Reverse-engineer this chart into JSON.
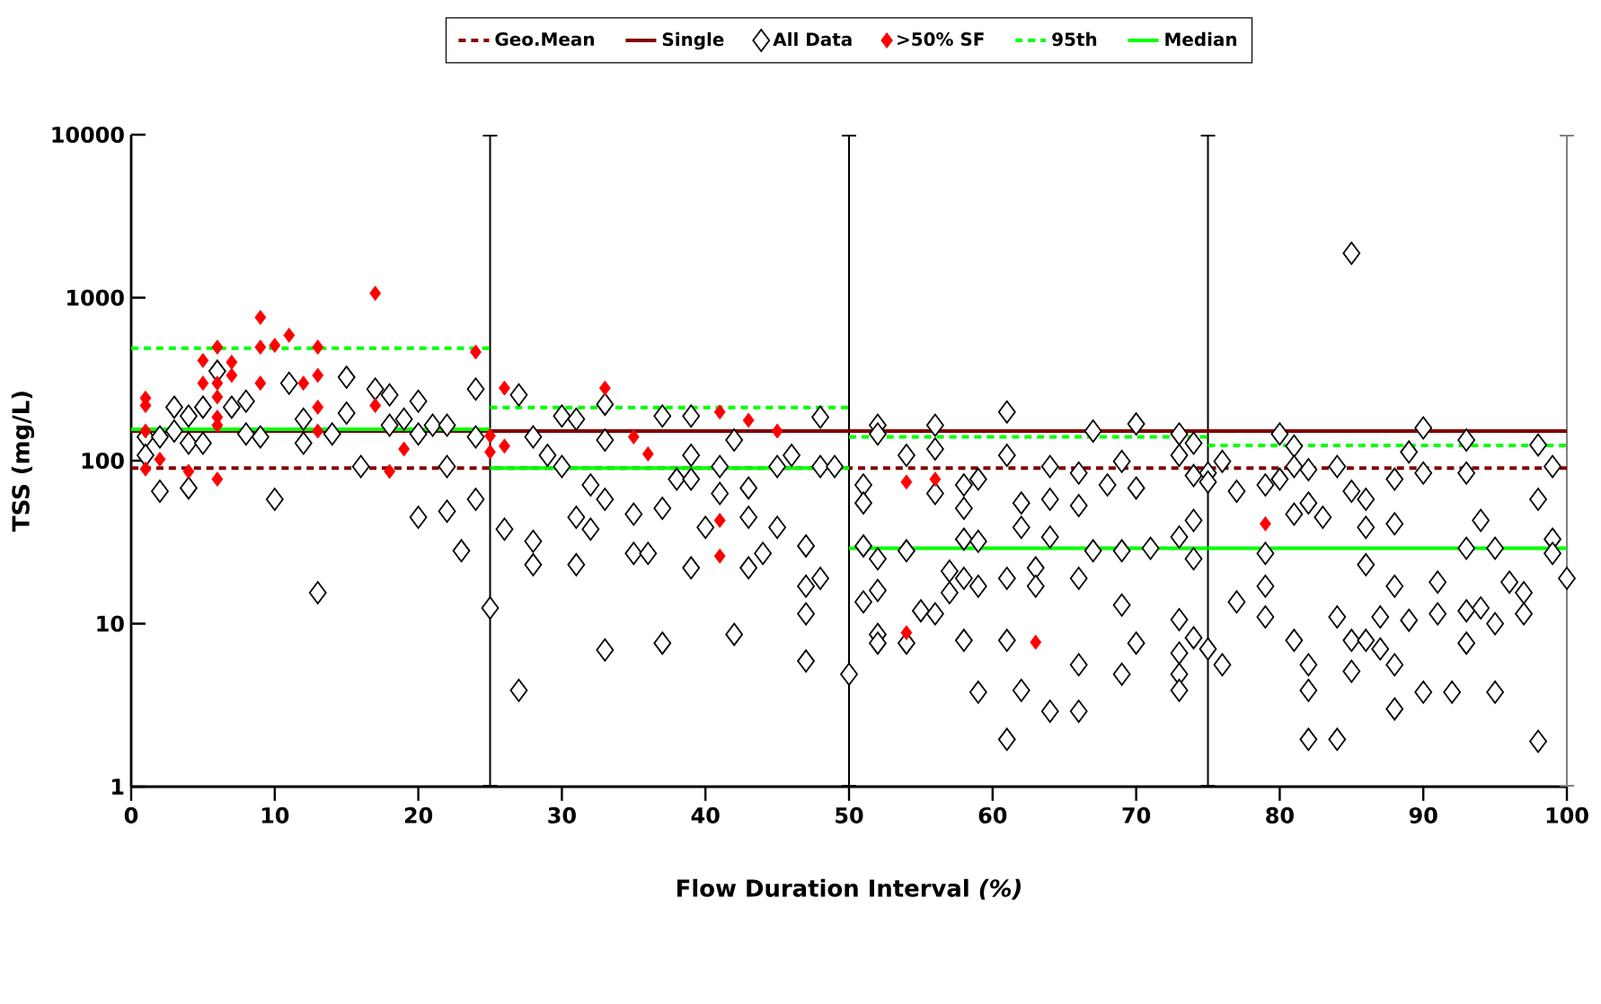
{
  "chart_data": {
    "type": "scatter",
    "xlabel": "Flow Duration Interval *(%)*",
    "ylabel": "TSS (mg/L)",
    "xlim": [
      0,
      100
    ],
    "xticks": [
      0,
      10,
      20,
      30,
      40,
      50,
      60,
      70,
      80,
      90,
      100
    ],
    "ylim": [
      1,
      10000
    ],
    "yticks": [
      1,
      10,
      100,
      1000,
      10000
    ],
    "log": "y",
    "legend": "top",
    "ref_lines": [
      {
        "axis": "x",
        "value": 25,
        "color": "#000000"
      },
      {
        "axis": "x",
        "value": 50,
        "color": "#000000"
      },
      {
        "axis": "x",
        "value": 75,
        "color": "#000000"
      },
      {
        "axis": "x",
        "value": 100,
        "color": "#808080"
      }
    ],
    "series": [
      {
        "name": "Geo.Mean",
        "type": "line",
        "color": "#800000",
        "line_style": "dashed",
        "x": [
          0,
          100
        ],
        "values": [
          90,
          90
        ]
      },
      {
        "name": "Single",
        "type": "line",
        "color": "#800000",
        "line_style": "solid",
        "x": [
          0,
          100
        ],
        "values": [
          152,
          152
        ]
      },
      {
        "name": "All Data",
        "type": "scatter",
        "color": "#000000",
        "marker": "diamond",
        "x": [
          1,
          1,
          2,
          2,
          3,
          3,
          4,
          4,
          4,
          5,
          5,
          6,
          7,
          8,
          8,
          9,
          10,
          11,
          12,
          12,
          13,
          14,
          15,
          15,
          16,
          17,
          18,
          18,
          19,
          20,
          20,
          20,
          21,
          22,
          22,
          22,
          23,
          24,
          24,
          25,
          24,
          26,
          27,
          27,
          28,
          28,
          28,
          29,
          30,
          30,
          31,
          31,
          31,
          32,
          32,
          33,
          33,
          33,
          33,
          35,
          35,
          36,
          37,
          37,
          37,
          38,
          39,
          39,
          39,
          39,
          40,
          41,
          41,
          42,
          42,
          43,
          43,
          43,
          44,
          45,
          45,
          46,
          47,
          47,
          47,
          47,
          48,
          48,
          48,
          49,
          50,
          51,
          51,
          51,
          51,
          52,
          52,
          52,
          52,
          52,
          52,
          54,
          54,
          54,
          55,
          56,
          56,
          56,
          56,
          57,
          57,
          58,
          58,
          58,
          58,
          58,
          59,
          59,
          59,
          59,
          61,
          61,
          61,
          61,
          61,
          62,
          62,
          62,
          63,
          63,
          64,
          64,
          64,
          64,
          66,
          66,
          66,
          66,
          66,
          67,
          67,
          68,
          69,
          69,
          69,
          69,
          70,
          70,
          70,
          71,
          73,
          73,
          73,
          73,
          73,
          73,
          73,
          74,
          74,
          74,
          74,
          74,
          75,
          75,
          75,
          76,
          76,
          77,
          77,
          79,
          79,
          79,
          79,
          80,
          80,
          81,
          81,
          81,
          81,
          82,
          82,
          82,
          82,
          82,
          83,
          84,
          84,
          84,
          85,
          85,
          85,
          85,
          86,
          86,
          86,
          86,
          87,
          87,
          88,
          88,
          88,
          88,
          88,
          89,
          89,
          90,
          90,
          90,
          91,
          91,
          92,
          93,
          93,
          93,
          93,
          93,
          94,
          94,
          95,
          95,
          95,
          96,
          97,
          97,
          98,
          98,
          98,
          99,
          99,
          99,
          100
        ],
        "values": [
          140,
          108,
          65,
          140,
          213,
          152,
          188,
          68,
          128,
          128,
          213,
          354,
          213,
          232,
          146,
          140,
          58,
          299,
          180,
          128,
          15.5,
          146,
          325,
          196,
          92,
          275,
          253,
          165,
          180,
          232,
          146,
          45,
          165,
          165,
          92,
          49,
          28,
          275,
          58,
          12.5,
          140,
          38,
          253,
          3.9,
          32,
          23,
          140,
          108,
          188,
          92,
          180,
          45,
          23,
          71,
          38,
          222,
          134,
          58,
          6.9,
          47,
          27,
          27,
          188,
          51,
          7.6,
          77,
          188,
          108,
          77,
          22,
          39,
          92,
          63,
          134,
          8.6,
          68,
          45,
          22,
          27,
          39,
          92,
          108,
          30,
          17,
          11.5,
          5.9,
          185,
          92,
          19,
          92,
          4.9,
          71,
          55,
          30,
          13.6,
          165,
          146,
          25,
          16,
          8.6,
          7.6,
          108,
          28,
          7.6,
          12,
          165,
          118,
          63,
          11.5,
          21,
          15.5,
          71,
          51,
          33,
          19,
          7.9,
          77,
          32,
          17,
          3.8,
          199,
          108,
          19,
          7.9,
          1.95,
          55,
          39,
          3.9,
          22,
          17,
          92,
          58,
          34,
          2.9,
          84,
          53,
          19,
          5.6,
          2.9,
          152,
          28,
          71,
          99,
          28,
          13,
          4.9,
          168,
          68,
          7.6,
          29,
          146,
          108,
          34,
          10.6,
          6.6,
          4.9,
          3.9,
          128,
          43,
          25,
          8.2,
          81,
          84,
          74,
          7,
          99,
          5.6,
          65,
          13.6,
          71,
          27,
          17,
          11,
          146,
          77,
          123,
          92,
          47,
          7.9,
          88,
          55,
          5.6,
          3.9,
          1.95,
          45,
          92,
          1.95,
          11,
          1875,
          65,
          7.9,
          5.1,
          58,
          39,
          23,
          7.9,
          11,
          7,
          77,
          41,
          17,
          5.6,
          3,
          113,
          10.5,
          159,
          84,
          3.8,
          18,
          11.5,
          3.8,
          134,
          84,
          29,
          12,
          7.6,
          43,
          12.5,
          29,
          10,
          3.8,
          18,
          15.5,
          11.5,
          125,
          58,
          1.9,
          92,
          33,
          27,
          19
        ]
      },
      {
        "name": ">50% SF",
        "type": "scatter",
        "color": "#ff0000",
        "marker": "diamond",
        "x": [
          1,
          1,
          1,
          1,
          2,
          4,
          5,
          5,
          6,
          6,
          6,
          6,
          6,
          6,
          7,
          7,
          9,
          9,
          9,
          10,
          11,
          12,
          13,
          13,
          13,
          13,
          17,
          17,
          18,
          19,
          24,
          25,
          25,
          26,
          26,
          33,
          35,
          36,
          41,
          41,
          41,
          43,
          45,
          54,
          56,
          54,
          63,
          79
        ],
        "values": [
          242,
          218,
          152,
          89,
          102,
          86,
          412,
          299,
          497,
          299,
          246,
          185,
          165,
          77,
          402,
          334,
          757,
          497,
          299,
          510,
          588,
          299,
          497,
          334,
          213,
          152,
          1064,
          218,
          86,
          118,
          464,
          142,
          113,
          279,
          123,
          279,
          140,
          110,
          199,
          43,
          26,
          177,
          152,
          74,
          77,
          8.8,
          7.7,
          41
        ]
      },
      {
        "name": "95th",
        "type": "line",
        "color": "#00ff00",
        "line_style": "dashed",
        "x": [
          0,
          25,
          25,
          50,
          50,
          75,
          75,
          100
        ],
        "values": [
          490,
          490,
          212,
          212,
          140,
          140,
          124,
          124
        ]
      },
      {
        "name": "Median",
        "type": "line",
        "color": "#00ff00",
        "line_style": "solid",
        "x": [
          0,
          25,
          25,
          50,
          50,
          75,
          75,
          100
        ],
        "values": [
          156,
          156,
          90,
          90,
          29,
          29,
          29,
          29
        ]
      }
    ]
  }
}
